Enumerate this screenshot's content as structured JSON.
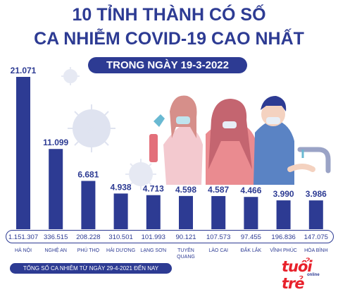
{
  "header": {
    "title_line1": "10 TỈNH THÀNH CÓ SỐ",
    "title_line2": "CA NHIỄM COVID-19 CAO NHẤT",
    "subtitle": "TRONG NGÀY 19-3-2022"
  },
  "footnote": "TỔNG SỐ CA NHIỄM TỪ NGÀY 29-4-2021 ĐẾN NAY",
  "logo": {
    "text": "tuổi trẻ",
    "sub": "online"
  },
  "colors": {
    "bar": "#2d3b93",
    "accent": "#2d3b93",
    "brand": "#e8212b"
  },
  "chart_data": {
    "type": "bar",
    "categories": [
      "HÀ NỘI",
      "NGHỆ AN",
      "PHÚ THỌ",
      "HẢI DƯƠNG",
      "LẠNG SƠN",
      "TUYÊN QUANG",
      "LÀO CAI",
      "ĐẮK LẮK",
      "VĨNH PHÚC",
      "HÒA BÌNH"
    ],
    "category_lines": [
      [
        "HÀ NỘI"
      ],
      [
        "NGHỆ AN"
      ],
      [
        "PHÚ THỌ"
      ],
      [
        "HẢI DƯƠNG"
      ],
      [
        "LẠNG SƠN"
      ],
      [
        "TUYÊN",
        "QUANG"
      ],
      [
        "LÀO CAI"
      ],
      [
        "ĐẮK LẮK"
      ],
      [
        "VĨNH PHÚC"
      ],
      [
        "HÒA BÌNH"
      ]
    ],
    "values": [
      21071,
      11099,
      6681,
      4938,
      4713,
      4598,
      4587,
      4466,
      3990,
      3986
    ],
    "value_labels": [
      "21.071",
      "11.099",
      "6.681",
      "4.938",
      "4.713",
      "4.598",
      "4.587",
      "4.466",
      "3.990",
      "3.986"
    ],
    "totals": [
      1151307,
      336515,
      208228,
      310501,
      101993,
      90121,
      107573,
      97455,
      196836,
      147075
    ],
    "total_labels": [
      "1.151.307",
      "336.515",
      "208.228",
      "310.501",
      "101.993",
      "90.121",
      "107.573",
      "97.455",
      "196.836",
      "147.075"
    ],
    "ylim": [
      0,
      21071
    ],
    "grid": false
  }
}
